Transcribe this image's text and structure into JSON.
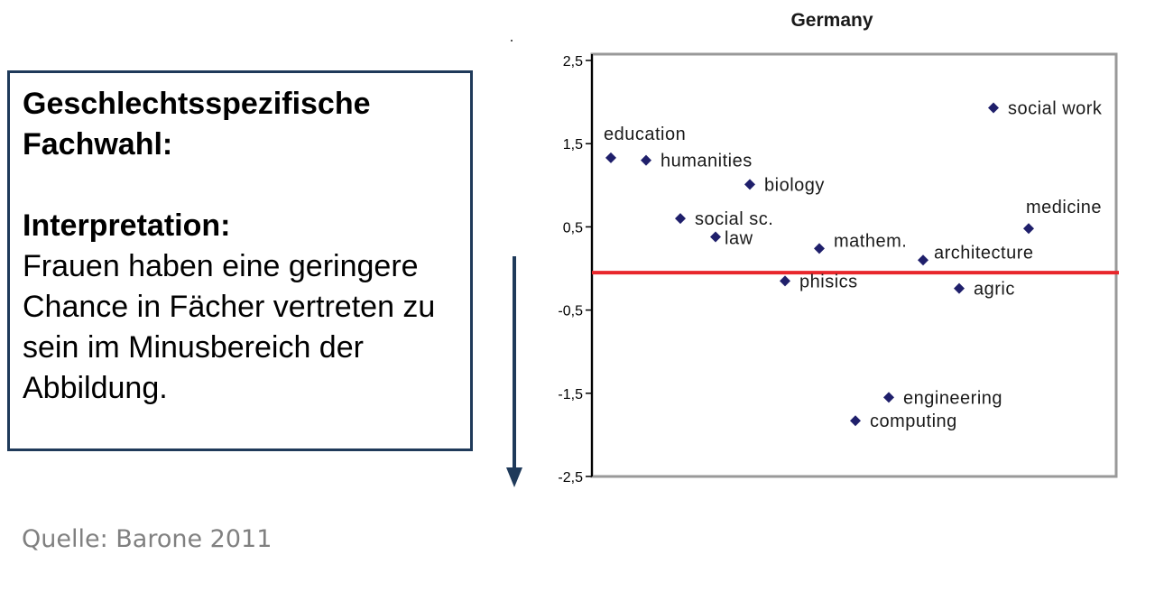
{
  "text_box": {
    "heading_1": "Geschlechtsspezifische",
    "heading_2": "Fachwahl:",
    "heading_3": "Interpretation:",
    "body": "Frauen haben eine geringere Chance in Fächer vertreten zu sein im Minusbereich der Abbildung."
  },
  "source": "Quelle: Barone 2011",
  "colors": {
    "box_border": "#1f3a5a",
    "arrow": "#1f3a5a",
    "reference_line": "#e8262b",
    "points": "#1f1f6b",
    "frame": "#999999",
    "source_text": "#808080"
  },
  "chart_data": {
    "type": "scatter",
    "title": "Germany",
    "xlabel": "",
    "ylabel": "",
    "ylim": [
      -2.5,
      2.5
    ],
    "yticks": [
      2.5,
      1.5,
      0.5,
      -0.5,
      -1.5,
      -2.5
    ],
    "ytick_labels": [
      "2,5",
      "1,5",
      "0,5",
      "-0,5",
      "-1,5",
      "-2,5"
    ],
    "x_axis_labeled": false,
    "reference_line_y": -0.05,
    "points": [
      {
        "label": "education",
        "x": 1,
        "y": 1.33
      },
      {
        "label": "humanities",
        "x": 2,
        "y": 1.3
      },
      {
        "label": "biology",
        "x": 5,
        "y": 1.01
      },
      {
        "label": "social sc.",
        "x": 3,
        "y": 0.6
      },
      {
        "label": "law",
        "x": 4,
        "y": 0.38
      },
      {
        "label": "mathem.",
        "x": 7,
        "y": 0.24
      },
      {
        "label": "phisics",
        "x": 6,
        "y": -0.15
      },
      {
        "label": "architecture",
        "x": 10,
        "y": 0.1
      },
      {
        "label": "agric",
        "x": 11,
        "y": -0.24
      },
      {
        "label": "social work",
        "x": 12,
        "y": 1.93
      },
      {
        "label": "medicine",
        "x": 13,
        "y": 0.48
      },
      {
        "label": "engineering",
        "x": 9,
        "y": -1.55
      },
      {
        "label": "computing",
        "x": 8,
        "y": -1.83
      }
    ]
  }
}
